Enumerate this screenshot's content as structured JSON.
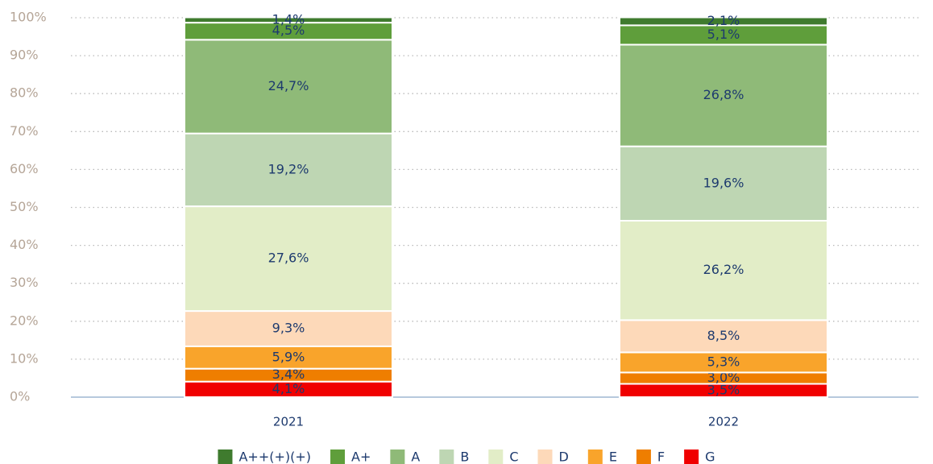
{
  "chart_data": {
    "type": "stacked_bar",
    "categories": [
      "2021",
      "2022"
    ],
    "ylim": [
      0,
      100
    ],
    "yticks": [
      {
        "value": 0,
        "label": "0%"
      },
      {
        "value": 10,
        "label": "10%"
      },
      {
        "value": 20,
        "label": "20%"
      },
      {
        "value": 30,
        "label": "30%"
      },
      {
        "value": 40,
        "label": "40%"
      },
      {
        "value": 50,
        "label": "50%"
      },
      {
        "value": 60,
        "label": "60%"
      },
      {
        "value": 70,
        "label": "70%"
      },
      {
        "value": 80,
        "label": "80%"
      },
      {
        "value": 90,
        "label": "90%"
      },
      {
        "value": 100,
        "label": "100%"
      }
    ],
    "grid": true,
    "series": [
      {
        "name": "A++(+)(+)",
        "color": "#3f7b2e",
        "values": [
          1.4,
          2.1
        ],
        "value_labels": [
          "1,4%",
          "2,1%"
        ]
      },
      {
        "name": "A+",
        "color": "#5f9e3b",
        "values": [
          4.5,
          5.1
        ],
        "value_labels": [
          "4,5%",
          "5,1%"
        ]
      },
      {
        "name": "A",
        "color": "#8fba78",
        "values": [
          24.7,
          26.8
        ],
        "value_labels": [
          "24,7%",
          "26,8%"
        ]
      },
      {
        "name": "B",
        "color": "#bed6b3",
        "values": [
          19.2,
          19.6
        ],
        "value_labels": [
          "19,2%",
          "19,6%"
        ]
      },
      {
        "name": "C",
        "color": "#e2edc7",
        "values": [
          27.6,
          26.2
        ],
        "value_labels": [
          "27,6%",
          "26,2%"
        ]
      },
      {
        "name": "D",
        "color": "#fdd9b9",
        "values": [
          9.3,
          8.5
        ],
        "value_labels": [
          "9,3%",
          "8,5%"
        ]
      },
      {
        "name": "E",
        "color": "#f9a42b",
        "values": [
          5.9,
          5.3
        ],
        "value_labels": [
          "5,9%",
          "5,3%"
        ]
      },
      {
        "name": "F",
        "color": "#ef7e00",
        "values": [
          3.4,
          3.0
        ],
        "value_labels": [
          "3,4%",
          "3,0%"
        ]
      },
      {
        "name": "G",
        "color": "#f00000",
        "values": [
          4.1,
          3.5
        ],
        "value_labels": [
          "4,1%",
          "3,5%"
        ]
      }
    ]
  }
}
